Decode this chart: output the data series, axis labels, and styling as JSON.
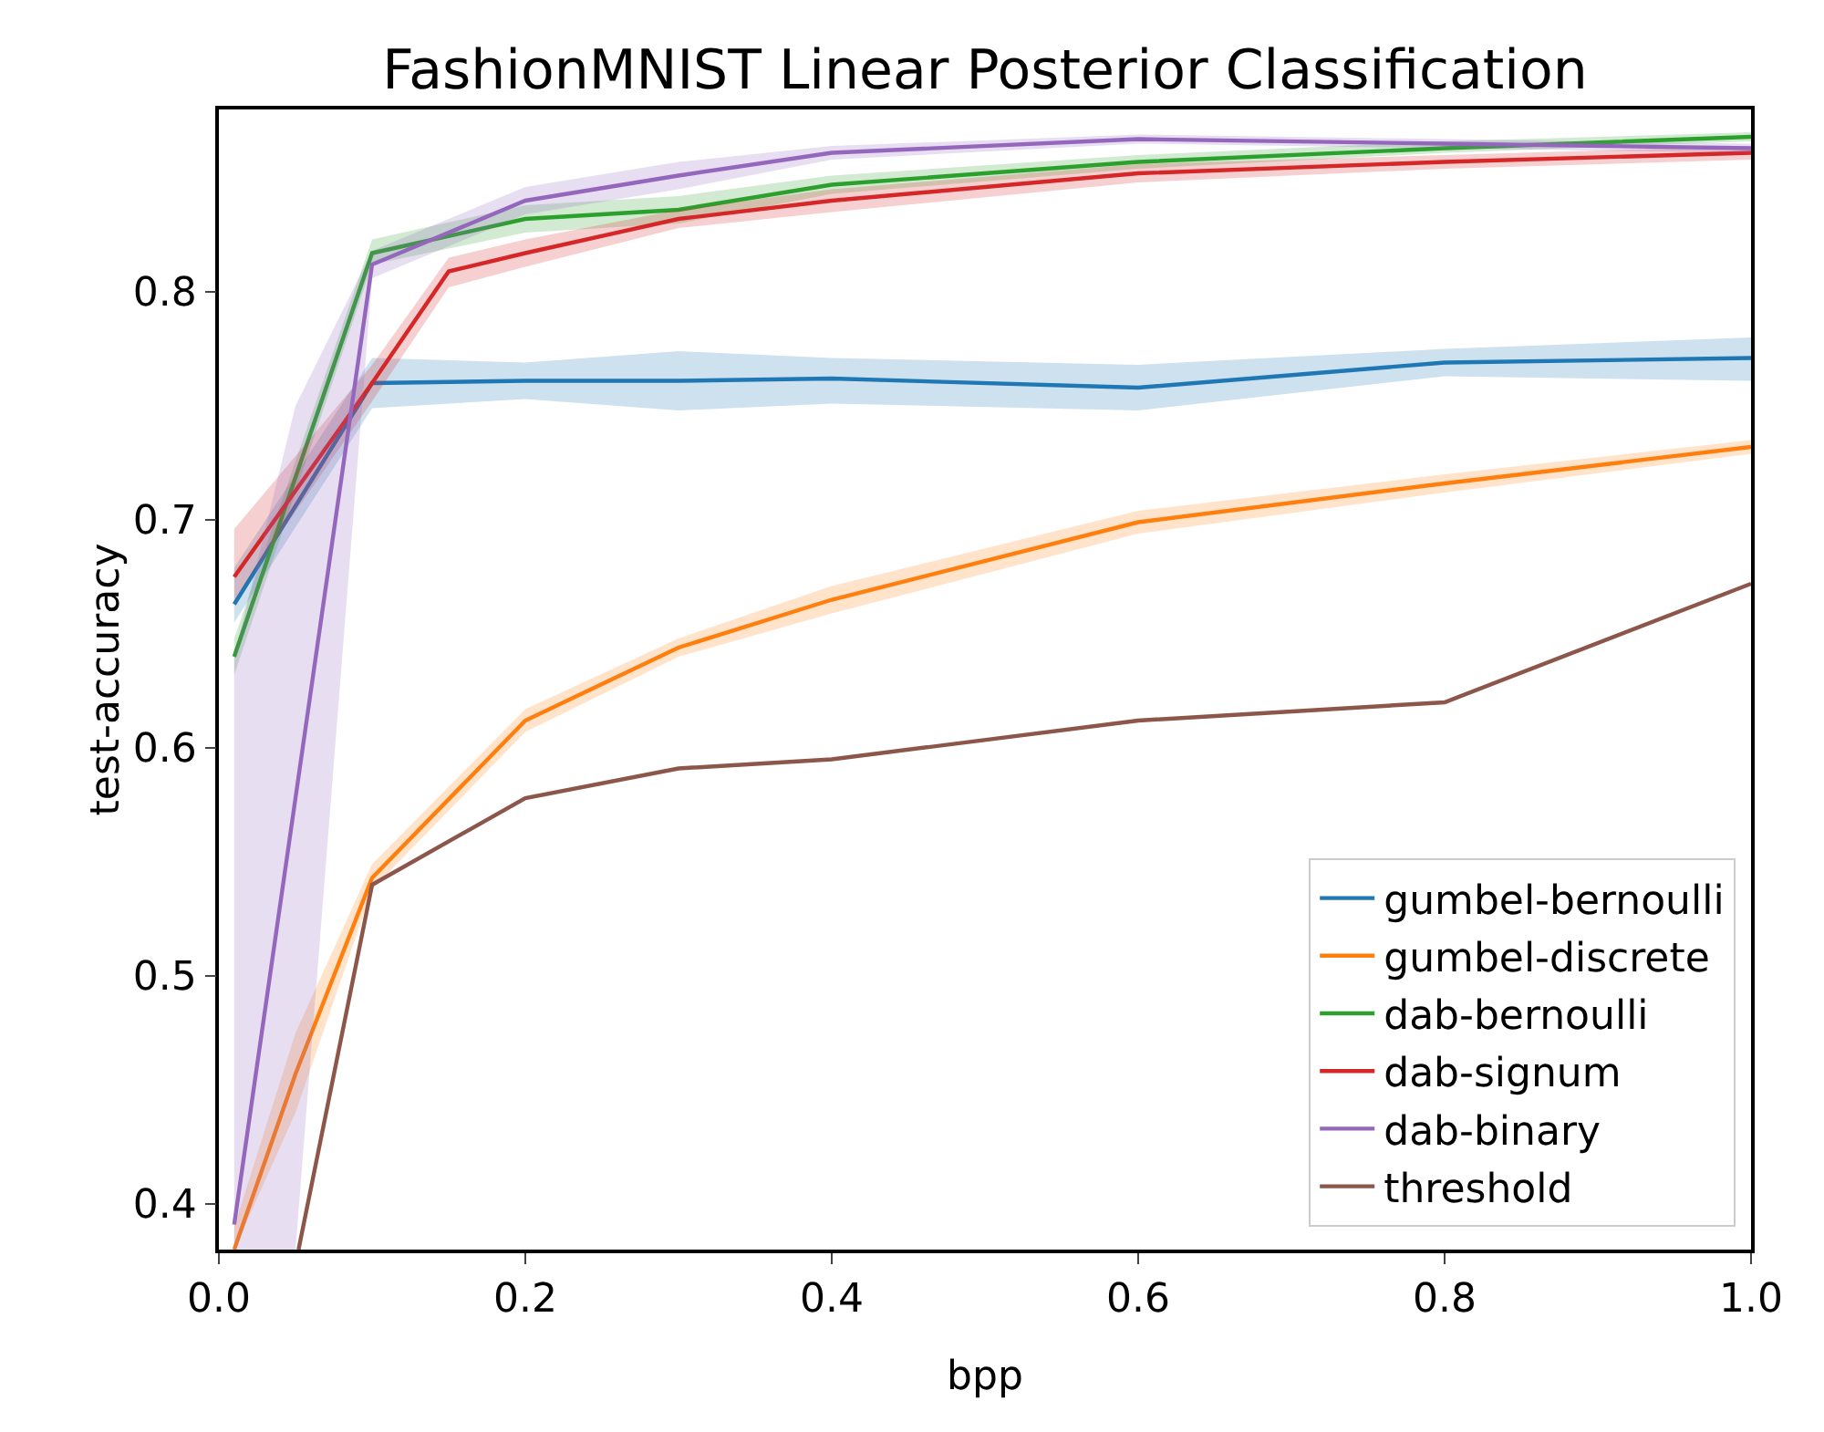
{
  "chart_data": {
    "type": "line",
    "title": "FashionMNIST Linear Posterior Classification",
    "xlabel": "bpp",
    "ylabel": "test-accuracy",
    "xlim": [
      0,
      1
    ],
    "ylim": [
      0.38,
      0.88
    ],
    "xticks": [
      {
        "value": 0,
        "label": "0.0"
      },
      {
        "value": 0.2,
        "label": "0.2"
      },
      {
        "value": 0.4,
        "label": "0.4"
      },
      {
        "value": 0.6,
        "label": "0.6"
      },
      {
        "value": 0.8,
        "label": "0.8"
      },
      {
        "value": 1,
        "label": "1.0"
      }
    ],
    "yticks": [
      0.4,
      0.5,
      0.6,
      0.7,
      0.8
    ],
    "grid": false,
    "legend": "bottom right",
    "line_style": "solid",
    "series": [
      {
        "name": "gumbel-bernoulli",
        "color": "#1f77b4",
        "x": [
          0.01,
          0.1,
          0.2,
          0.3,
          0.4,
          0.6,
          0.8,
          1
        ],
        "values": [
          0.663,
          0.76,
          0.761,
          0.761,
          0.762,
          0.758,
          0.769,
          0.771
        ],
        "lower": [
          0.655,
          0.749,
          0.753,
          0.748,
          0.751,
          0.748,
          0.763,
          0.761
        ],
        "upper": [
          0.679,
          0.771,
          0.769,
          0.774,
          0.771,
          0.768,
          0.775,
          0.78
        ]
      },
      {
        "name": "gumbel-discrete",
        "color": "#ff7f0e",
        "x": [
          0.01,
          0.05,
          0.1,
          0.2,
          0.3,
          0.4,
          0.6,
          0.8,
          1
        ],
        "values": [
          0.38,
          0.457,
          0.543,
          0.612,
          0.644,
          0.665,
          0.699,
          0.716,
          0.732
        ],
        "lower": [
          0.38,
          0.44,
          0.538,
          0.607,
          0.64,
          0.659,
          0.694,
          0.712,
          0.729
        ],
        "upper": [
          0.39,
          0.475,
          0.549,
          0.617,
          0.648,
          0.671,
          0.704,
          0.72,
          0.735
        ]
      },
      {
        "name": "dab-bernoulli",
        "color": "#2ca02c",
        "x": [
          0.01,
          0.1,
          0.2,
          0.3,
          0.4,
          0.6,
          0.8,
          1
        ],
        "values": [
          0.64,
          0.817,
          0.832,
          0.836,
          0.847,
          0.857,
          0.863,
          0.868
        ],
        "lower": [
          0.632,
          0.812,
          0.826,
          0.83,
          0.843,
          0.854,
          0.861,
          0.866
        ],
        "upper": [
          0.648,
          0.823,
          0.838,
          0.842,
          0.851,
          0.86,
          0.866,
          0.87
        ]
      },
      {
        "name": "dab-signum",
        "color": "#d62728",
        "x": [
          0.01,
          0.1,
          0.15,
          0.2,
          0.3,
          0.4,
          0.6,
          0.8,
          1
        ],
        "values": [
          0.675,
          0.76,
          0.809,
          0.817,
          0.832,
          0.84,
          0.852,
          0.857,
          0.861
        ],
        "lower": [
          0.665,
          0.752,
          0.802,
          0.811,
          0.828,
          0.835,
          0.848,
          0.854,
          0.858
        ],
        "upper": [
          0.696,
          0.768,
          0.815,
          0.823,
          0.836,
          0.845,
          0.856,
          0.86,
          0.864
        ]
      },
      {
        "name": "dab-binary",
        "color": "#9467bd",
        "x": [
          0.01,
          0.05,
          0.1,
          0.2,
          0.3,
          0.4,
          0.6,
          0.8,
          1
        ],
        "values": [
          0.391,
          0.578,
          0.812,
          0.84,
          0.851,
          0.861,
          0.867,
          0.865,
          0.863
        ],
        "lower": [
          0.38,
          0.38,
          0.806,
          0.834,
          0.845,
          0.858,
          0.865,
          0.863,
          0.861
        ],
        "upper": [
          0.64,
          0.75,
          0.818,
          0.846,
          0.857,
          0.864,
          0.869,
          0.867,
          0.865
        ]
      },
      {
        "name": "threshold",
        "color": "#8c564b",
        "x": [
          0.052,
          0.1,
          0.2,
          0.3,
          0.4,
          0.6,
          0.8,
          1
        ],
        "values": [
          0.38,
          0.54,
          0.578,
          0.591,
          0.595,
          0.612,
          0.62,
          0.672
        ]
      }
    ]
  }
}
